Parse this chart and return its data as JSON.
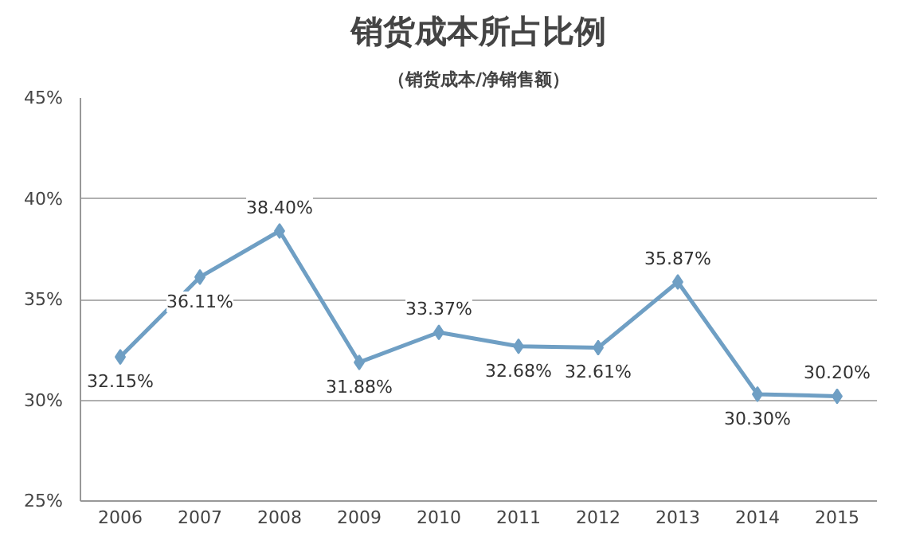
{
  "chart_data": {
    "type": "line",
    "title": "销货成本所占比例",
    "subtitle": "（销货成本/净销售额）",
    "categories": [
      "2006",
      "2007",
      "2008",
      "2009",
      "2010",
      "2011",
      "2012",
      "2013",
      "2014",
      "2015"
    ],
    "series": [
      {
        "color": "#6f9fc4",
        "values": [
          32.15,
          36.11,
          38.4,
          31.88,
          33.37,
          32.68,
          32.61,
          35.87,
          30.3,
          30.2
        ],
        "value_labels": [
          "32.15%",
          "36.11%",
          "38.40%",
          "31.88%",
          "33.37%",
          "32.68%",
          "32.61%",
          "35.87%",
          "30.30%",
          "30.20%"
        ]
      }
    ],
    "ylim": [
      25,
      45
    ],
    "yticks": [
      {
        "value": 25,
        "label": "25%"
      },
      {
        "value": 30,
        "label": "30%"
      },
      {
        "value": 35,
        "label": "35%"
      },
      {
        "value": 40,
        "label": "40%"
      },
      {
        "value": 45,
        "label": "45%"
      }
    ],
    "grid": "y",
    "marker": "diamond",
    "line_style": "solid"
  }
}
